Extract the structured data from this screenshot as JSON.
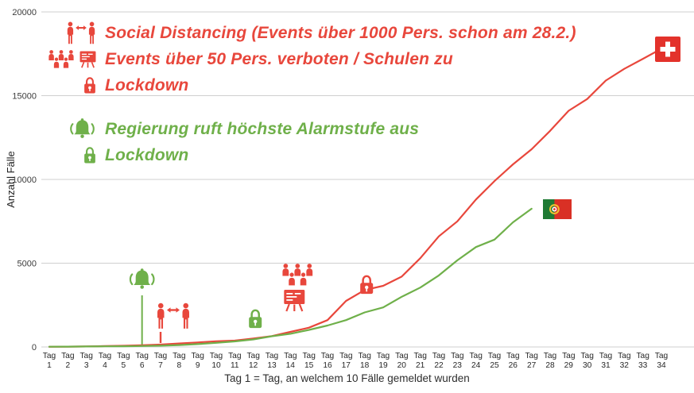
{
  "colors": {
    "red": "#e8473c",
    "green": "#6fb04a",
    "grid": "#cfcfcf",
    "axis_text": "#3c3c3c"
  },
  "legend": {
    "red_rows": [
      {
        "icon": "people-distance-icon",
        "label": "Social Distancing (Events über 1000 Pers. schon am 28.2.)"
      },
      {
        "icon": "crowd-board-icon",
        "label": "Events über 50 Pers. verboten / Schulen zu"
      },
      {
        "icon": "lock-icon",
        "label": "Lockdown"
      }
    ],
    "green_rows": [
      {
        "icon": "alarm-bell-icon",
        "label": "Regierung ruft höchste Alarmstufe aus"
      },
      {
        "icon": "lock-icon",
        "label": "Lockdown"
      }
    ]
  },
  "chart_data": {
    "type": "line",
    "title": "",
    "ylabel": "Anzahl Fälle",
    "xlabel": "Tag 1 = Tag, an welchem 10 Fälle gemeldet wurden",
    "ylim": [
      0,
      20000
    ],
    "yticks": [
      0,
      5000,
      10000,
      15000,
      20000
    ],
    "x_tick_prefix": "Tag",
    "days": 34,
    "grid": "horizontal",
    "legend_position": "none",
    "series": [
      {
        "name": "Schweiz",
        "flag": "switzerland",
        "color_key": "red",
        "values": [
          10,
          20,
          30,
          50,
          70,
          100,
          140,
          210,
          270,
          340,
          380,
          500,
          650,
          900,
          1150,
          1600,
          2750,
          3400,
          3650,
          4200,
          5300,
          6600,
          7500,
          8800,
          9900,
          10900,
          11800,
          12900,
          14100,
          14800,
          15900,
          16600,
          17200,
          17800
        ]
      },
      {
        "name": "Portugal",
        "flag": "portugal",
        "color_key": "green",
        "values": [
          13,
          21,
          30,
          39,
          41,
          59,
          78,
          112,
          169,
          245,
          331,
          448,
          642,
          785,
          1020,
          1280,
          1600,
          2060,
          2362,
          2995,
          3544,
          4268,
          5170,
          5962,
          6408,
          7443,
          8251
        ]
      }
    ],
    "events": [
      {
        "day": 6,
        "series": "Portugal",
        "icon": "alarm-bell-icon",
        "label": "Regierung ruft höchste Alarmstufe aus"
      },
      {
        "day": 7,
        "series": "Schweiz",
        "icon": "people-distance-icon",
        "label": "Social Distancing (Events über 1000 Pers. schon am 28.2.)"
      },
      {
        "day": 12,
        "series": "Portugal",
        "icon": "lock-icon",
        "label": "Lockdown"
      },
      {
        "day": 14,
        "series": "Schweiz",
        "icon": "crowd-board-icon",
        "label": "Events über 50 Pers. verboten / Schulen zu"
      },
      {
        "day": 18,
        "series": "Schweiz",
        "icon": "lock-icon",
        "label": "Lockdown"
      }
    ]
  }
}
